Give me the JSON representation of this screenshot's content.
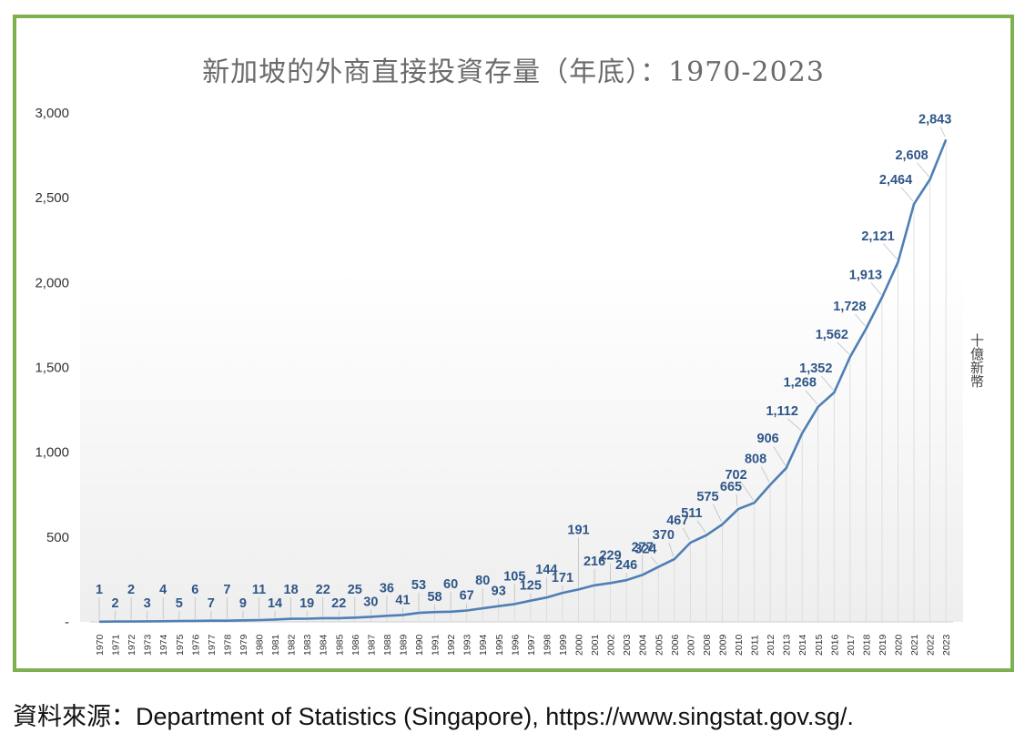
{
  "chart_data": {
    "type": "line",
    "title": "新加坡的外商直接投資存量（年底）：1970-2023",
    "xlabel": "",
    "ylabel": "十億新幣",
    "ylim": [
      0,
      3000
    ],
    "yticks": [
      0,
      500,
      1000,
      1500,
      2000,
      2500,
      3000
    ],
    "yticklabels": [
      "-",
      "500",
      "1,000",
      "1,500",
      "2,000",
      "2,500",
      "3,000"
    ],
    "grid": false,
    "legend": "none",
    "x": [
      "1970",
      "1971",
      "1972",
      "1973",
      "1974",
      "1975",
      "1976",
      "1977",
      "1978",
      "1979",
      "1980",
      "1981",
      "1982",
      "1983",
      "1984",
      "1985",
      "1986",
      "1987",
      "1988",
      "1989",
      "1990",
      "1991",
      "1992",
      "1993",
      "1994",
      "1995",
      "1996",
      "1997",
      "1998",
      "1999",
      "2000",
      "2001",
      "2002",
      "2003",
      "2004",
      "2005",
      "2006",
      "2007",
      "2008",
      "2009",
      "2010",
      "2011",
      "2012",
      "2013",
      "2014",
      "2015",
      "2016",
      "2017",
      "2018",
      "2019",
      "2020",
      "2021",
      "2022",
      "2023"
    ],
    "values": [
      1,
      2,
      2,
      3,
      4,
      5,
      6,
      7,
      7,
      9,
      11,
      14,
      18,
      19,
      22,
      22,
      25,
      30,
      36,
      41,
      53,
      58,
      60,
      67,
      80,
      93,
      105,
      125,
      144,
      171,
      191,
      216,
      229,
      246,
      277,
      324,
      370,
      467,
      511,
      575,
      665,
      702,
      808,
      906,
      1112,
      1268,
      1352,
      1562,
      1728,
      1913,
      2121,
      2464,
      2608,
      2843
    ],
    "labels": [
      "1",
      "2",
      "2",
      "3",
      "4",
      "5",
      "6",
      "7",
      "7",
      "9",
      "11",
      "14",
      "18",
      "19",
      "22",
      "22",
      "25",
      "30",
      "36",
      "41",
      "53",
      "58",
      "60",
      "67",
      "80",
      "93",
      "105",
      "125",
      "144",
      "171",
      "191",
      "216",
      "229",
      "246",
      "277",
      "324",
      "370",
      "467",
      "511",
      "575",
      "665",
      "702",
      "808",
      "906",
      "1,112",
      "1,268",
      "1,352",
      "1,562",
      "1,728",
      "1,913",
      "2,121",
      "2,464",
      "2,608",
      "2,843"
    ],
    "line_color": "#4f7fb5",
    "label_color": "#2f5688"
  },
  "source_note": "資料來源：Department of Statistics (Singapore), https://www.singstat.gov.sg/."
}
